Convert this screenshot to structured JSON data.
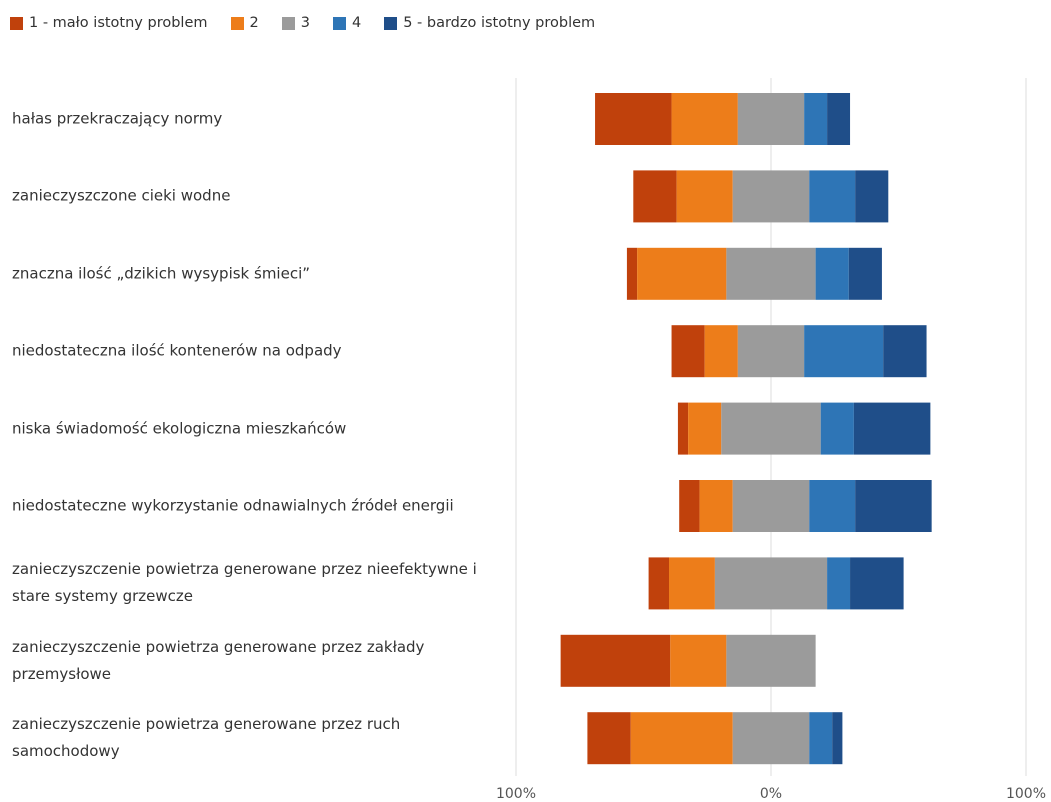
{
  "chart_data": {
    "type": "bar",
    "subtype": "diverging-stacked-bar-100",
    "legend_position": "top-left",
    "x_ticks": [
      "100%",
      "0%",
      "100%"
    ],
    "xlim": [
      -100,
      100
    ],
    "grid": true,
    "series": [
      {
        "name": "1 - mało istotny problem",
        "color": "#C0410C"
      },
      {
        "name": "2",
        "color": "#ED7D1A"
      },
      {
        "name": "3",
        "color": "#9B9B9B"
      },
      {
        "name": "4",
        "color": "#2E75B6"
      },
      {
        "name": "5 - bardzo istotny problem",
        "color": "#1F4E89"
      }
    ],
    "categories": [
      "hałas przekraczający normy",
      "zanieczyszczone cieki wodne",
      "znaczna ilość „dzikich wysypisk śmieci”",
      "niedostateczna ilość kontenerów na odpady",
      "niska świadomość ekologiczna mieszkańców",
      "niedostateczne wykorzystanie odnawialnych źródeł energii",
      "zanieczyszczenie powietrza generowane przez nieefektywne i stare systemy grzewcze",
      "zanieczyszczenie powietrza generowane przez zakłady przemysłowe",
      "zanieczyszczenie powietrza generowane przez ruch samochodowy"
    ],
    "values": [
      [
        30,
        26,
        26,
        9,
        9
      ],
      [
        17,
        22,
        30,
        18,
        13
      ],
      [
        4,
        35,
        35,
        13,
        13
      ],
      [
        13,
        13,
        26,
        31,
        17
      ],
      [
        4,
        13,
        39,
        13,
        30
      ],
      [
        8,
        13,
        30,
        18,
        30
      ],
      [
        8,
        18,
        44,
        9,
        21
      ],
      [
        43,
        22,
        35,
        0,
        0
      ],
      [
        17,
        40,
        30,
        9,
        4
      ]
    ]
  }
}
